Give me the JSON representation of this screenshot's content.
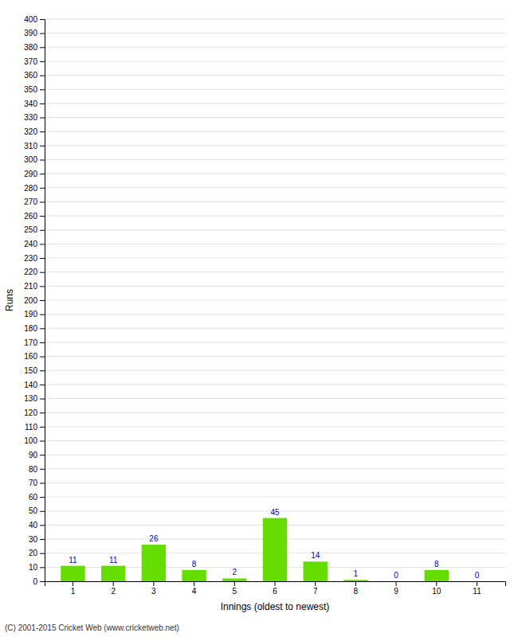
{
  "chart_data": {
    "type": "bar",
    "categories": [
      1,
      2,
      3,
      4,
      5,
      6,
      7,
      8,
      9,
      10,
      11
    ],
    "values": [
      11,
      11,
      26,
      8,
      2,
      45,
      14,
      1,
      0,
      8,
      0
    ],
    "color": "#66dd00",
    "x_label": "Innings (oldest to newest)",
    "y_label": "Runs",
    "ylim": [
      0,
      400
    ],
    "yticks": [
      0,
      10,
      20,
      30,
      40,
      50,
      60,
      70,
      80,
      90,
      100,
      110,
      120,
      130,
      140,
      150,
      160,
      170,
      180,
      190,
      200,
      210,
      220,
      230,
      240,
      250,
      260,
      270,
      280,
      290,
      300,
      310,
      320,
      330,
      340,
      350,
      360,
      370,
      380,
      390,
      400
    ],
    "grid": true,
    "data_labels": true,
    "annotations": [
      "(C) 2001-2015 Cricket Web (www.cricketweb.net)"
    ]
  }
}
